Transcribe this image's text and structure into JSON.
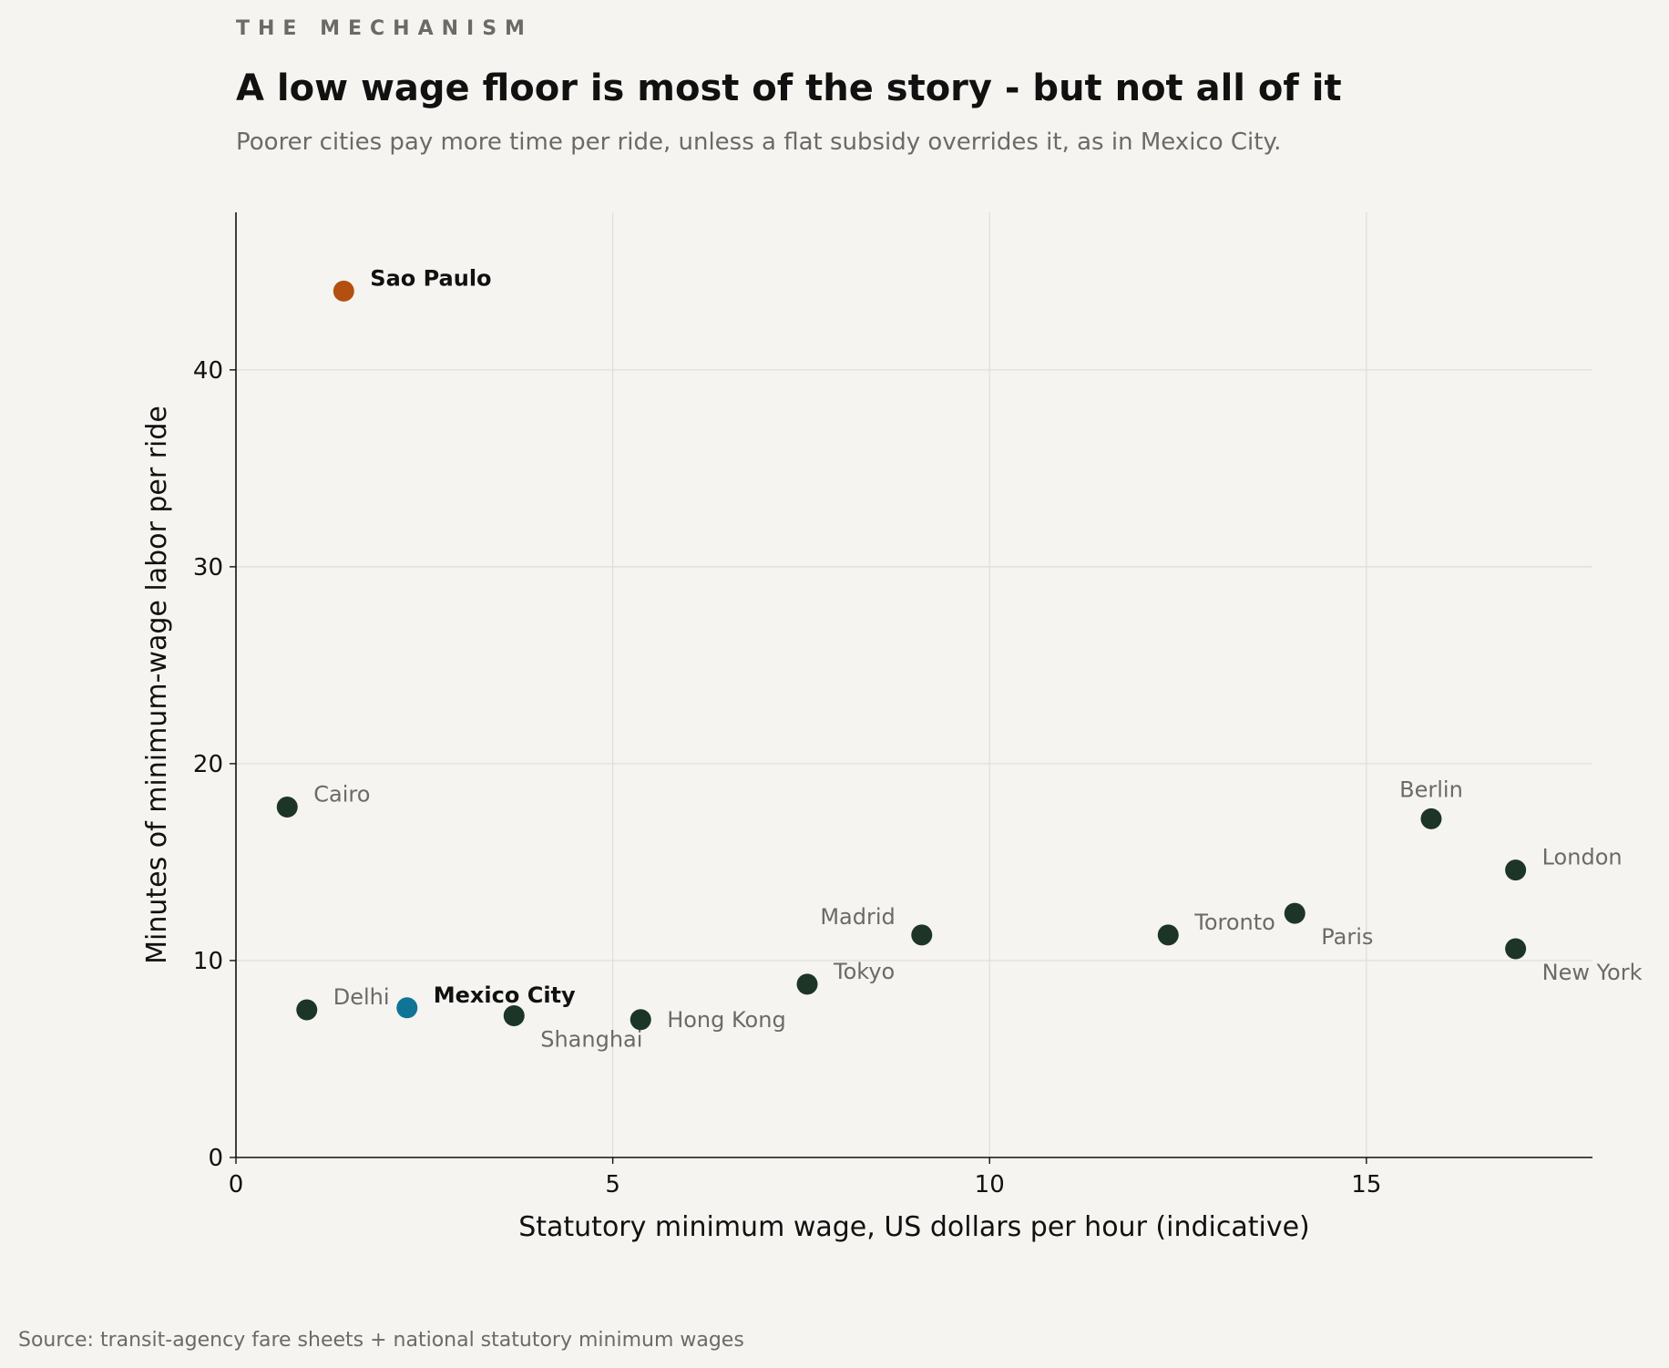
{
  "kicker": "THE MECHANISM",
  "title": "A low wage floor is most of the story - but not all of it",
  "subtitle": "Poorer cities pay more time per ride, unless a flat subsidy overrides it, as in Mexico City.",
  "source": "Source: transit-agency fare sheets + national statutory minimum wages",
  "colors": {
    "background": "#f5f4f0",
    "default_point": "#1c3527",
    "sao_paulo": "#b4500f",
    "mexico_city": "#0f7496",
    "label_muted": "#6b6b66",
    "label_strong": "#111111",
    "grid": "#dddddb",
    "kicker": "#6b6b66"
  },
  "chart_data": {
    "type": "scatter",
    "title": "A low wage floor is most of the story - but not all of it",
    "subtitle": "Poorer cities pay more time per ride, unless a flat subsidy overrides it, as in Mexico City.",
    "xlabel": "Statutory minimum wage, US dollars per hour (indicative)",
    "ylabel": "Minutes of minimum-wage labor per ride",
    "xlim": [
      0,
      18
    ],
    "ylim": [
      0,
      48
    ],
    "xticks": [
      0,
      5,
      10,
      15
    ],
    "yticks": [
      0,
      10,
      20,
      30,
      40
    ],
    "grid": true,
    "points": [
      {
        "name": "Sao Paulo",
        "x": 1.43,
        "y": 44.0,
        "color": "sao_paulo",
        "emphasis": true,
        "label_pos": "right-up"
      },
      {
        "name": "Cairo",
        "x": 0.68,
        "y": 17.8,
        "color": "default_point",
        "emphasis": false,
        "label_pos": "right-up"
      },
      {
        "name": "Delhi",
        "x": 0.94,
        "y": 7.5,
        "color": "default_point",
        "emphasis": false,
        "label_pos": "right-up"
      },
      {
        "name": "Mexico City",
        "x": 2.27,
        "y": 7.6,
        "color": "mexico_city",
        "emphasis": true,
        "label_pos": "right-up"
      },
      {
        "name": "Shanghai",
        "x": 3.69,
        "y": 7.2,
        "color": "default_point",
        "emphasis": false,
        "label_pos": "right-down"
      },
      {
        "name": "Hong Kong",
        "x": 5.37,
        "y": 7.0,
        "color": "default_point",
        "emphasis": false,
        "label_pos": "right"
      },
      {
        "name": "Tokyo",
        "x": 7.58,
        "y": 8.8,
        "color": "default_point",
        "emphasis": false,
        "label_pos": "right-up"
      },
      {
        "name": "Madrid",
        "x": 9.1,
        "y": 11.3,
        "color": "default_point",
        "emphasis": false,
        "label_pos": "left-up"
      },
      {
        "name": "Toronto",
        "x": 12.37,
        "y": 11.3,
        "color": "default_point",
        "emphasis": false,
        "label_pos": "right-up"
      },
      {
        "name": "Paris",
        "x": 14.05,
        "y": 12.4,
        "color": "default_point",
        "emphasis": false,
        "label_pos": "right-down"
      },
      {
        "name": "Berlin",
        "x": 15.86,
        "y": 17.2,
        "color": "default_point",
        "emphasis": false,
        "label_pos": "above"
      },
      {
        "name": "London",
        "x": 16.98,
        "y": 14.6,
        "color": "default_point",
        "emphasis": false,
        "label_pos": "right-up"
      },
      {
        "name": "New York",
        "x": 16.98,
        "y": 10.6,
        "color": "default_point",
        "emphasis": false,
        "label_pos": "right-down"
      }
    ]
  }
}
